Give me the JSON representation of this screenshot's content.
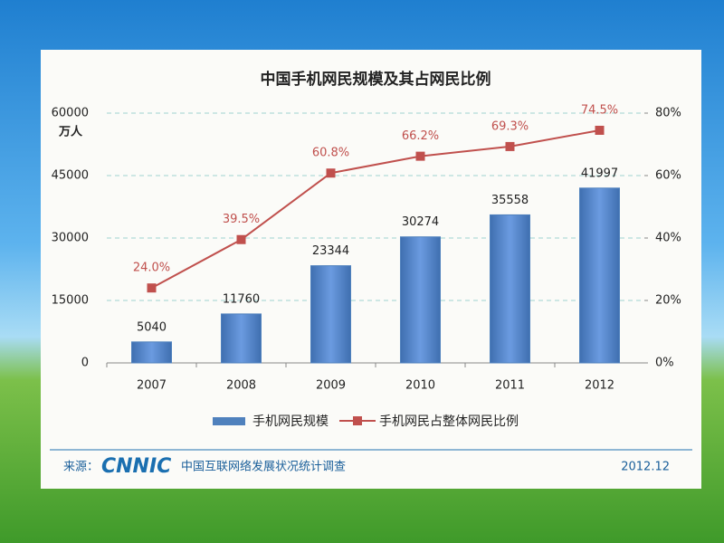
{
  "chart_data": {
    "type": "bar",
    "title": "中国手机网民规模及其占网民比例",
    "y_label": "万人",
    "categories": [
      "2007",
      "2008",
      "2009",
      "2010",
      "2011",
      "2012"
    ],
    "series": [
      {
        "name": "手机网民规模",
        "color": "#4f81bd",
        "values": [
          5040,
          11760,
          23344,
          30274,
          35558,
          41997
        ]
      },
      {
        "name": "手机网民占整体网民比例",
        "type": "line",
        "axis": "y2",
        "color": "#c0504d",
        "values": [
          24.0,
          39.5,
          60.8,
          66.2,
          69.3,
          74.5
        ],
        "value_labels": [
          "24.0%",
          "39.5%",
          "60.8%",
          "66.2%",
          "69.3%",
          "74.5%"
        ]
      }
    ],
    "ylim": [
      0,
      60000
    ],
    "yticks": [
      0,
      15000,
      30000,
      45000,
      60000
    ],
    "y2lim": [
      0,
      80
    ],
    "y2ticks": [
      {
        "value": 0,
        "label": "0%"
      },
      {
        "value": 20,
        "label": "20%"
      },
      {
        "value": 40,
        "label": "40%"
      },
      {
        "value": 60,
        "label": "60%"
      },
      {
        "value": 80,
        "label": "80%"
      }
    ],
    "grid": true,
    "legend": "bottom",
    "source_prefix": "来源：",
    "source_logo": "CNNIC",
    "source": "中国互联网络发展状况统计调查",
    "date": "2012.12"
  }
}
